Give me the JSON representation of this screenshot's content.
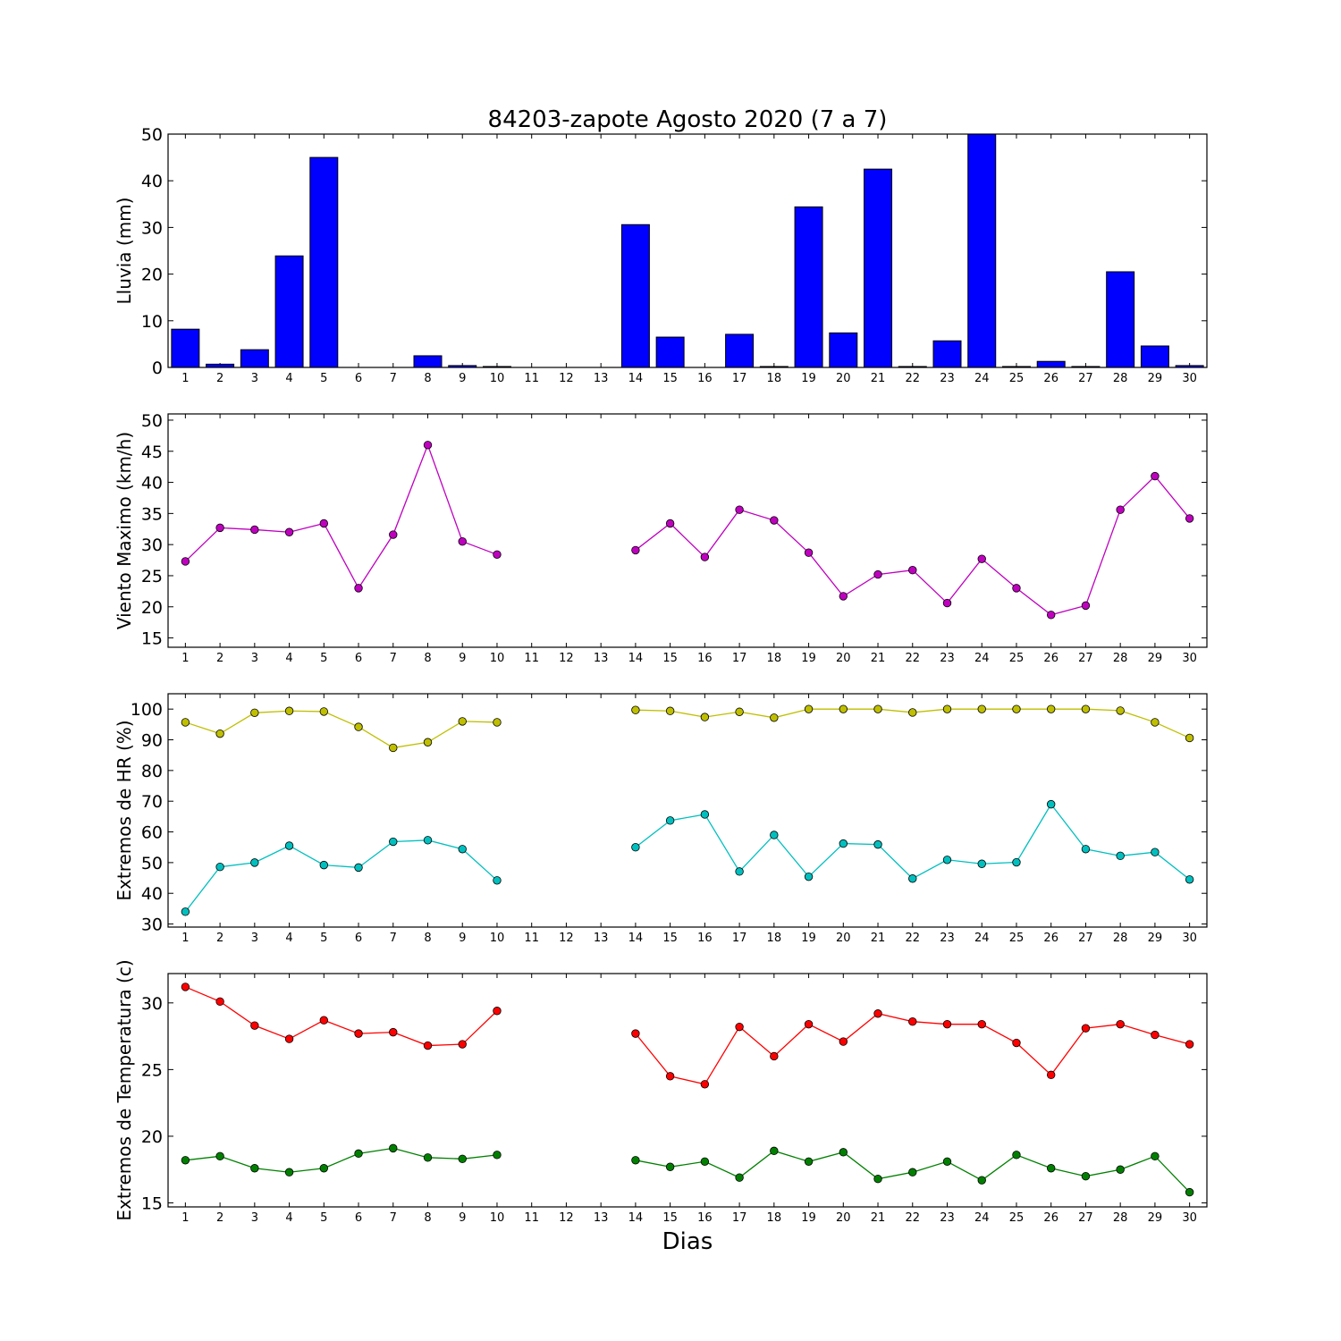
{
  "figure": {
    "title": "84203-zapote Agosto 2020  (7 a 7)",
    "xlabel": "Dias"
  },
  "chart_data": [
    {
      "type": "bar",
      "ylabel": "Lluvia (mm)",
      "ylim": [
        0,
        50
      ],
      "yticks": [
        0,
        10,
        20,
        30,
        40,
        50
      ],
      "categories": [
        1,
        2,
        3,
        4,
        5,
        6,
        7,
        8,
        9,
        10,
        11,
        12,
        13,
        14,
        15,
        16,
        17,
        18,
        19,
        20,
        21,
        22,
        23,
        24,
        25,
        26,
        27,
        28,
        29,
        30
      ],
      "series": [
        {
          "color": "#0000ff",
          "values": [
            8.2,
            0.7,
            3.8,
            23.9,
            45.0,
            0,
            0,
            2.5,
            0.4,
            0.2,
            0,
            0,
            0,
            30.6,
            6.5,
            0,
            7.1,
            0.2,
            34.4,
            7.4,
            42.5,
            0.2,
            5.7,
            50.0,
            0.2,
            1.3,
            0.2,
            20.5,
            4.6,
            0.4
          ]
        }
      ]
    },
    {
      "type": "line",
      "ylabel": "Viento Maximo (km/h)",
      "ylim": [
        13.5,
        51
      ],
      "yticks": [
        15,
        20,
        25,
        30,
        35,
        40,
        45,
        50
      ],
      "x": [
        1,
        2,
        3,
        4,
        5,
        6,
        7,
        8,
        9,
        10,
        11,
        12,
        13,
        14,
        15,
        16,
        17,
        18,
        19,
        20,
        21,
        22,
        23,
        24,
        25,
        26,
        27,
        28,
        29,
        30
      ],
      "series": [
        {
          "color": "#bf00bf",
          "values": [
            27.3,
            32.7,
            32.4,
            32.0,
            33.4,
            23.0,
            31.6,
            46.0,
            30.5,
            28.4,
            null,
            null,
            null,
            29.1,
            33.4,
            28.0,
            35.6,
            33.9,
            28.7,
            21.7,
            25.2,
            25.9,
            20.6,
            27.7,
            23.0,
            18.7,
            20.2,
            35.6,
            41.0,
            34.2
          ]
        }
      ]
    },
    {
      "type": "line",
      "ylabel": "Extremos de HR (%)",
      "ylim": [
        29,
        105
      ],
      "yticks": [
        30,
        40,
        50,
        60,
        70,
        80,
        90,
        100
      ],
      "x": [
        1,
        2,
        3,
        4,
        5,
        6,
        7,
        8,
        9,
        10,
        11,
        12,
        13,
        14,
        15,
        16,
        17,
        18,
        19,
        20,
        21,
        22,
        23,
        24,
        25,
        26,
        27,
        28,
        29,
        30
      ],
      "series": [
        {
          "color": "#bfbf00",
          "values": [
            95.7,
            92.0,
            98.8,
            99.4,
            99.2,
            94.2,
            87.4,
            89.2,
            96.0,
            95.7,
            null,
            null,
            null,
            99.7,
            99.4,
            97.4,
            99.1,
            97.2,
            100,
            100,
            100,
            98.9,
            100,
            100,
            100,
            100,
            100,
            99.5,
            95.7,
            90.6
          ]
        },
        {
          "color": "#00bfbf",
          "values": [
            34.0,
            48.6,
            50.0,
            55.5,
            49.2,
            48.4,
            56.8,
            57.3,
            54.4,
            44.2,
            null,
            null,
            null,
            55.0,
            63.7,
            65.7,
            47.1,
            59.0,
            45.4,
            56.2,
            55.9,
            44.8,
            50.9,
            49.6,
            50.1,
            69.0,
            54.4,
            52.2,
            53.4,
            44.5
          ]
        }
      ]
    },
    {
      "type": "line",
      "ylabel": "Extremos de Temperatura (c)",
      "ylim": [
        14.7,
        32.2
      ],
      "yticks": [
        15,
        20,
        25,
        30
      ],
      "x": [
        1,
        2,
        3,
        4,
        5,
        6,
        7,
        8,
        9,
        10,
        11,
        12,
        13,
        14,
        15,
        16,
        17,
        18,
        19,
        20,
        21,
        22,
        23,
        24,
        25,
        26,
        27,
        28,
        29,
        30
      ],
      "series": [
        {
          "color": "#ff0000",
          "values": [
            31.2,
            30.1,
            28.3,
            27.3,
            28.7,
            27.7,
            27.8,
            26.8,
            26.9,
            29.4,
            null,
            null,
            null,
            27.7,
            24.5,
            23.9,
            28.2,
            26.0,
            28.4,
            27.1,
            29.2,
            28.6,
            28.4,
            28.4,
            27.0,
            24.6,
            28.1,
            28.4,
            27.6,
            26.9
          ]
        },
        {
          "color": "#008000",
          "values": [
            18.2,
            18.5,
            17.6,
            17.3,
            17.6,
            18.7,
            19.1,
            18.4,
            18.3,
            18.6,
            null,
            null,
            null,
            18.2,
            17.7,
            18.1,
            16.9,
            18.9,
            18.1,
            18.8,
            16.8,
            17.3,
            18.1,
            16.7,
            18.6,
            17.6,
            17.0,
            17.5,
            18.5,
            15.8
          ]
        }
      ]
    }
  ]
}
